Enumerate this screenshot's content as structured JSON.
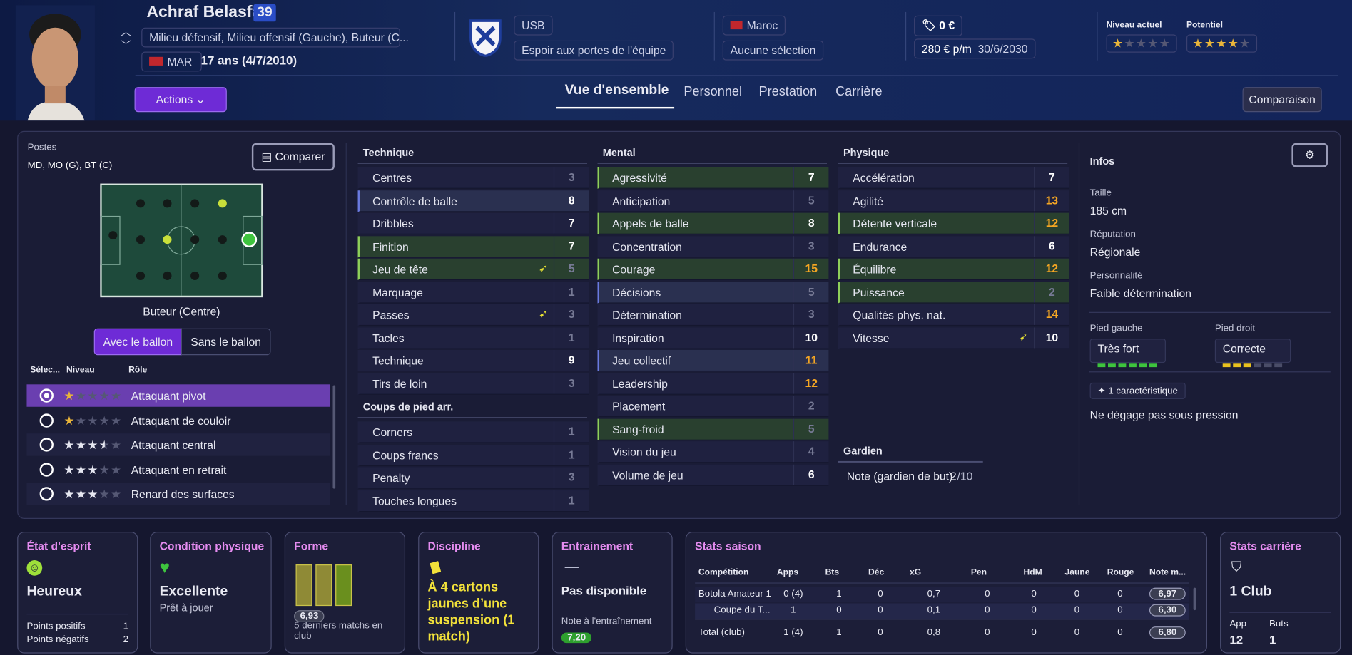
{
  "header": {
    "name": "Achraf Belasfar",
    "number": "39",
    "positions": "Milieu défensif, Milieu offensif (Gauche), Buteur (C...",
    "nation": "MAR",
    "age": "17 ans (4/7/2010)",
    "actions": "Actions",
    "club": "USB",
    "club_status": "Espoir aux portes de l'équipe",
    "country": "Maroc",
    "selection": "Aucune sélection",
    "value": "0 €",
    "wage": "280 € p/m",
    "contract": "30/6/2030",
    "current_label": "Niveau actuel",
    "current_stars": 1,
    "potential_label": "Potentiel",
    "potential_stars": 4,
    "comparison": "Comparaison"
  },
  "tabs": [
    "Vue d'ensemble",
    "Personnel",
    "Prestation",
    "Carrière"
  ],
  "positions": {
    "label": "Postes",
    "value": "MD, MO (G), BT (C)",
    "compare": "Comparer",
    "role_position": "Buteur (Centre)",
    "toggle": [
      "Avec le ballon",
      "Sans le ballon"
    ],
    "columns": [
      "Sélec...",
      "Niveau",
      "Rôle"
    ],
    "roles": [
      {
        "name": "Attaquant pivot",
        "stars": 1
      },
      {
        "name": "Attaquant de couloir",
        "stars": 1
      },
      {
        "name": "Attaquant central",
        "stars": 3.5
      },
      {
        "name": "Attaquant en retrait",
        "stars": 3
      },
      {
        "name": "Renard des surfaces",
        "stars": 3
      }
    ]
  },
  "attributes": [
    {
      "title": "Technique",
      "items": [
        {
          "name": "Centres",
          "value": 3
        },
        {
          "name": "Contrôle de balle",
          "value": 8
        },
        {
          "name": "Dribbles",
          "value": 7
        },
        {
          "name": "Finition",
          "value": 7
        },
        {
          "name": "Jeu de tête",
          "value": 5
        },
        {
          "name": "Marquage",
          "value": 1
        },
        {
          "name": "Passes",
          "value": 3
        },
        {
          "name": "Tacles",
          "value": 1
        },
        {
          "name": "Technique",
          "value": 9
        },
        {
          "name": "Tirs de loin",
          "value": 3
        }
      ]
    },
    {
      "title": "Coups de pied arr.",
      "items": [
        {
          "name": "Corners",
          "value": 1
        },
        {
          "name": "Coups francs",
          "value": 1
        },
        {
          "name": "Penalty",
          "value": 3
        },
        {
          "name": "Touches longues",
          "value": 1
        }
      ]
    },
    {
      "title": "Mental",
      "items": [
        {
          "name": "Agressivité",
          "value": 7
        },
        {
          "name": "Anticipation",
          "value": 5
        },
        {
          "name": "Appels de balle",
          "value": 8
        },
        {
          "name": "Concentration",
          "value": 3
        },
        {
          "name": "Courage",
          "value": 15
        },
        {
          "name": "Décisions",
          "value": 5
        },
        {
          "name": "Détermination",
          "value": 3
        },
        {
          "name": "Inspiration",
          "value": 10
        },
        {
          "name": "Jeu collectif",
          "value": 11
        },
        {
          "name": "Leadership",
          "value": 12
        },
        {
          "name": "Placement",
          "value": 2
        },
        {
          "name": "Sang-froid",
          "value": 5
        },
        {
          "name": "Vision du jeu",
          "value": 4
        },
        {
          "name": "Volume de jeu",
          "value": 6
        }
      ]
    },
    {
      "title": "Physique",
      "items": [
        {
          "name": "Accélération",
          "value": 7
        },
        {
          "name": "Agilité",
          "value": 13
        },
        {
          "name": "Détente verticale",
          "value": 12
        },
        {
          "name": "Endurance",
          "value": 6
        },
        {
          "name": "Équilibre",
          "value": 12
        },
        {
          "name": "Puissance",
          "value": 2
        },
        {
          "name": "Qualités phys. nat.",
          "value": 14
        },
        {
          "name": "Vitesse",
          "value": 10
        }
      ]
    },
    {
      "title": "Gardien",
      "items": [
        {
          "name": "Note (gardien de but)",
          "value": 2,
          "max_label": "/10"
        }
      ]
    }
  ],
  "infos": {
    "title": "Infos",
    "fields": [
      {
        "label": "Taille",
        "value": "185 cm"
      },
      {
        "label": "Réputation",
        "value": "Régionale"
      },
      {
        "label": "Personnalité",
        "value": "Faible détermination"
      }
    ],
    "feet": [
      {
        "label": "Pied gauche",
        "value": "Très fort",
        "level": 6,
        "color": "#3ec43e"
      },
      {
        "label": "Pied droit",
        "value": "Correcte",
        "level": 3,
        "color": "#e9c21f"
      }
    ],
    "traits_count": "1 caractéristique",
    "traits": [
      "Ne dégage pas sous pression"
    ]
  },
  "cards": {
    "mind": {
      "title": "État d'esprit",
      "value": "Heureux",
      "rows": [
        {
          "label": "Points positifs",
          "value": 1
        },
        {
          "label": "Points négatifs",
          "value": 2
        }
      ]
    },
    "condition": {
      "title": "Condition physique",
      "value": "Excellente",
      "note": "Prêt à jouer"
    },
    "form": {
      "title": "Forme",
      "value": 6.93,
      "value_label": "6,93",
      "note": "5 derniers matchs en club"
    },
    "discipline": {
      "title": "Discipline",
      "text": "À 4 cartons jaunes d’une suspension (1 match)"
    },
    "training": {
      "title": "Entrainement",
      "dash": "—",
      "value": "Pas disponible",
      "label": "Note à l'entraînement",
      "rating": 7.2,
      "rating_label": "7,20"
    },
    "season": {
      "title": "Stats saison",
      "columns": [
        "Compétition",
        "Apps",
        "Bts",
        "Déc",
        "xG",
        "Pen",
        "HdM",
        "Jaune",
        "Rouge",
        "Note m..."
      ],
      "rows": [
        [
          "Botola Amateur 1",
          "0 (4)",
          1,
          0,
          "0,7",
          0,
          0,
          0,
          0,
          "6,97"
        ],
        [
          "Coupe du T...",
          1,
          0,
          0,
          "0,1",
          0,
          0,
          0,
          0,
          "6,30"
        ],
        [
          "Total (club)",
          "1 (4)",
          1,
          0,
          "0,8",
          0,
          0,
          0,
          0,
          "6,80"
        ]
      ]
    },
    "career": {
      "title": "Stats carrière",
      "value": "1 Club",
      "stats": [
        {
          "label": "App",
          "value": 12
        },
        {
          "label": "Buts",
          "value": 1
        }
      ]
    }
  }
}
